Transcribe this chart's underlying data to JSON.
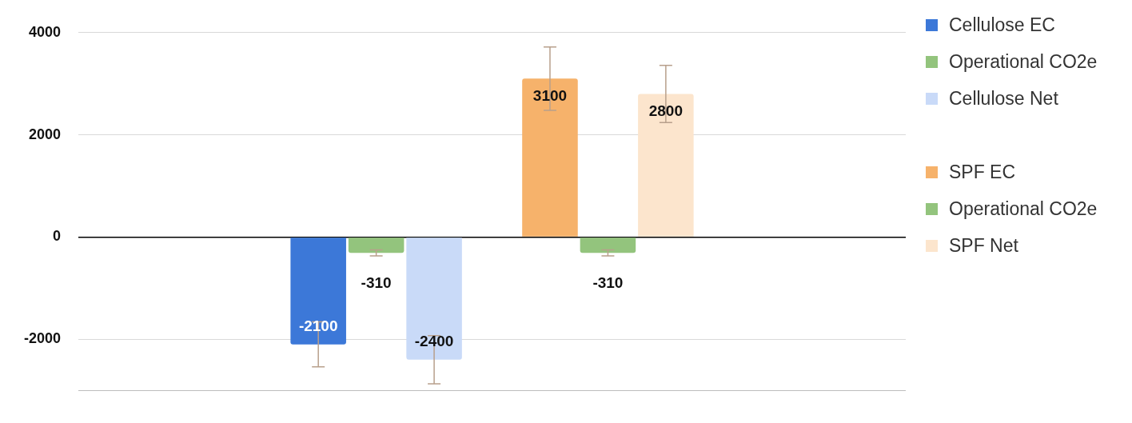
{
  "chart_data": {
    "type": "bar",
    "categories": [
      null
    ],
    "series": [
      {
        "name": "Cellulose EC",
        "color": "#3c78d8",
        "values": [
          -2100
        ],
        "errors": [
          440
        ]
      },
      {
        "name": "Operational CO2e",
        "color": "#93c47d",
        "values": [
          -310
        ],
        "errors": [
          60
        ]
      },
      {
        "name": "Cellulose Net",
        "color": "#c9daf8",
        "values": [
          -2400
        ],
        "errors": [
          470
        ]
      },
      {
        "values": [
          null
        ]
      },
      {
        "name": "SPF EC",
        "color": "#f6b26b",
        "values": [
          3100
        ],
        "errors": [
          620
        ]
      },
      {
        "name": "Operational CO2e",
        "color": "#93c47d",
        "values": [
          -310
        ],
        "errors": [
          60
        ]
      },
      {
        "name": "SPF Net",
        "color": "#fce5cd",
        "values": [
          2800
        ],
        "errors": [
          560
        ]
      }
    ],
    "ylim": [
      -3000,
      4000
    ],
    "yticks": [
      -2000,
      0,
      2000,
      4000
    ],
    "grid": "y",
    "legend": "right",
    "data_labels": true
  }
}
